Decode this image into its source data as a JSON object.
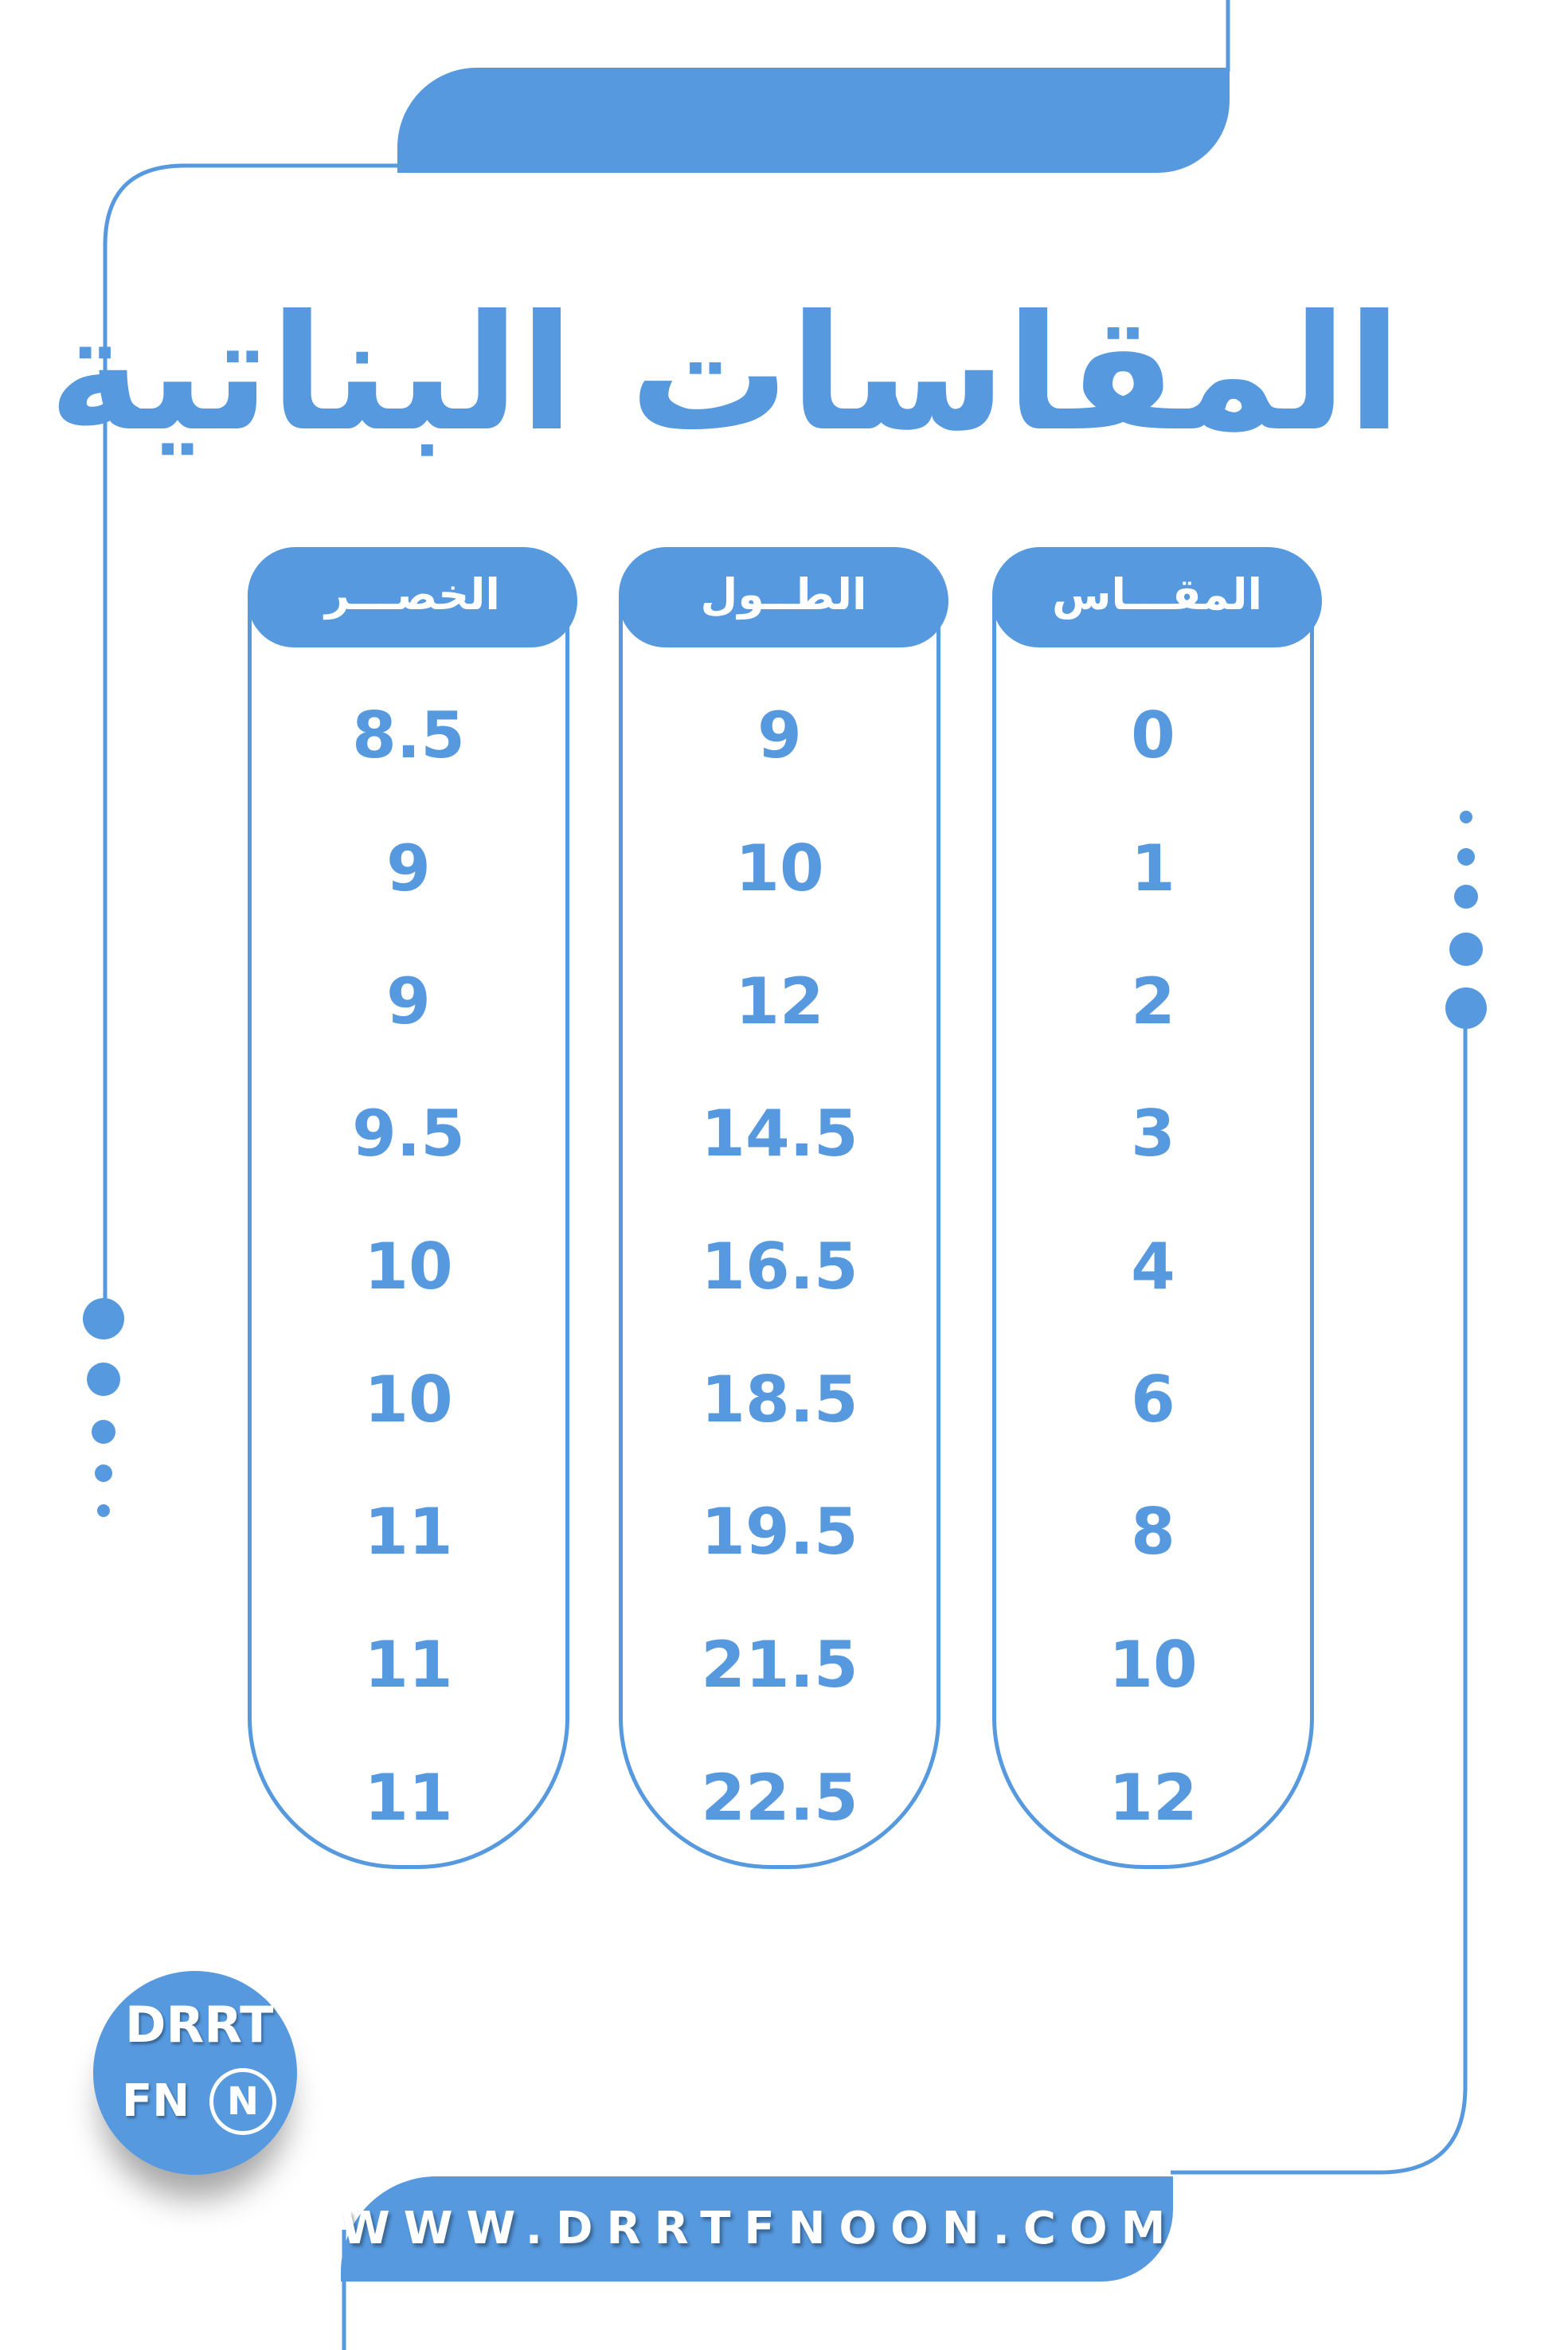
{
  "title": "المقاسات البناتية",
  "accent_color": "#5699de",
  "columns": [
    {
      "header": "المقـــاس",
      "values": [
        "0",
        "1",
        "2",
        "3",
        "4",
        "6",
        "8",
        "10",
        "12"
      ]
    },
    {
      "header": "الطــول",
      "values": [
        "9",
        "10",
        "12",
        "14.5",
        "16.5",
        "18.5",
        "19.5",
        "21.5",
        "22.5"
      ]
    },
    {
      "header": "الخصـــر",
      "values": [
        "8.5",
        "9",
        "9",
        "9.5",
        "10",
        "10",
        "11",
        "11",
        "11"
      ]
    }
  ],
  "footer": {
    "url": "WWW.DRRTFNOON.COM"
  },
  "logo": {
    "line1": "DRRT",
    "line2": "FN",
    "ring_letter": "N"
  }
}
